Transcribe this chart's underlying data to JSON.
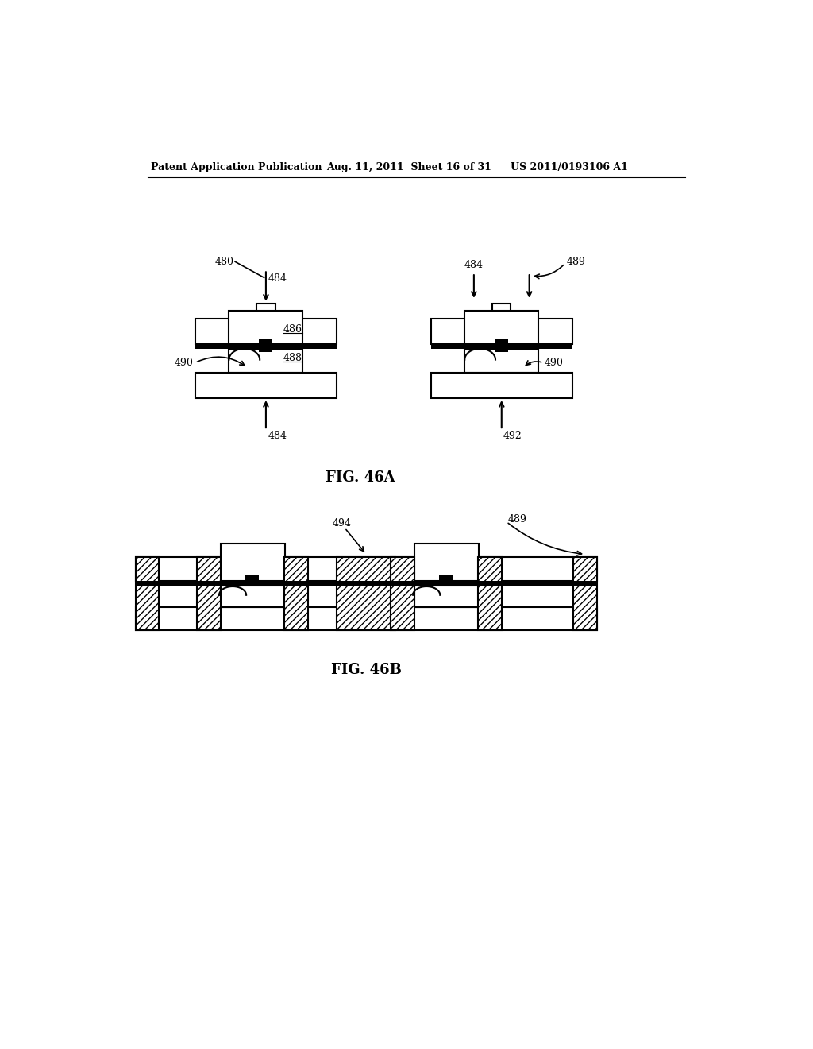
{
  "background_color": "#ffffff",
  "header_left": "Patent Application Publication",
  "header_mid": "Aug. 11, 2011  Sheet 16 of 31",
  "header_right": "US 2011/0193106 A1",
  "fig_46a_label": "FIG. 46A",
  "fig_46b_label": "FIG. 46B",
  "text_color": "#000000",
  "lw": 1.5
}
